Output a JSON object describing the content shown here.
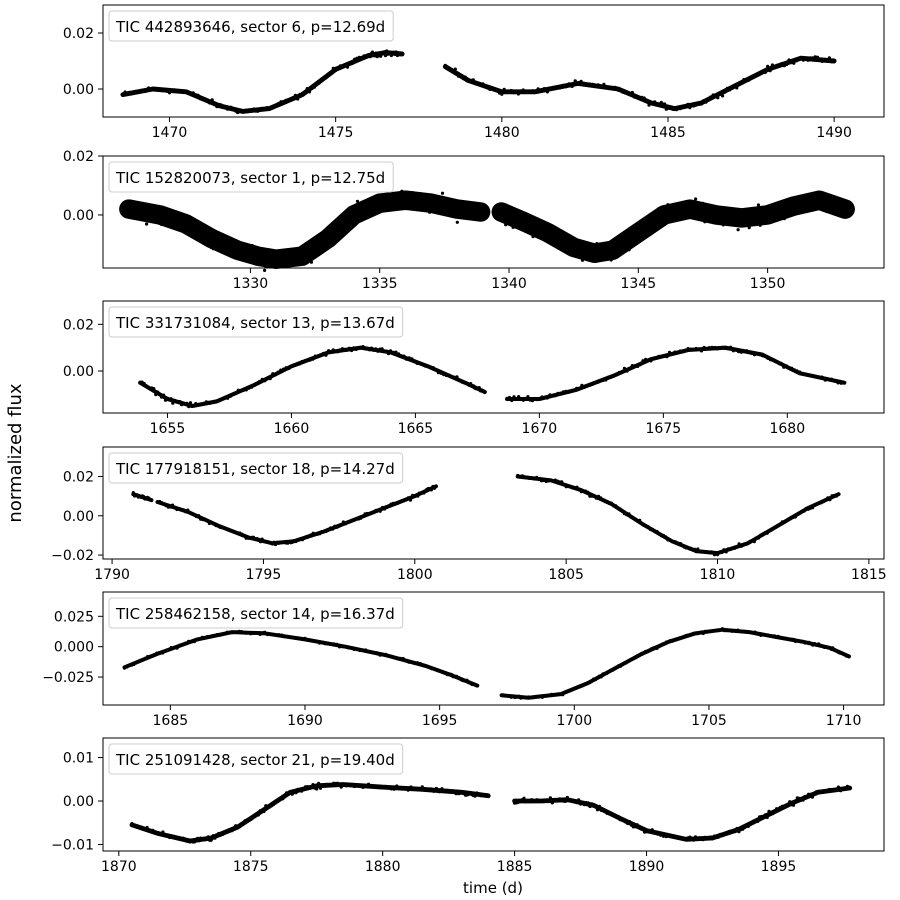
{
  "figure": {
    "ylabel": "normalized flux",
    "xlabel": "time (d)",
    "point_color": "#000000"
  },
  "chart_data": [
    {
      "type": "scatter",
      "label": "TIC 442893646, sector 6, p=12.69d",
      "xlabel": "",
      "ylabel": "normalized flux",
      "xlim": [
        1468.0,
        1491.5
      ],
      "ylim": [
        -0.01,
        0.03
      ],
      "xticks": [
        1470,
        1475,
        1480,
        1485,
        1490
      ],
      "yticks": [
        0.0,
        0.02
      ],
      "ytick_labels": [
        "0.00",
        "0.02"
      ],
      "scatter": 0.0008,
      "segments": [
        {
          "x": [
            1468.6,
            1469.5,
            1470.5,
            1471.5,
            1472.2,
            1473.0,
            1474.0,
            1475.0,
            1476.0,
            1476.5,
            1477.0
          ],
          "y": [
            -0.002,
            0.0,
            -0.001,
            -0.006,
            -0.008,
            -0.007,
            -0.002,
            0.007,
            0.012,
            0.013,
            0.0125
          ]
        },
        {
          "x": [
            1478.3,
            1479.0,
            1480.0,
            1481.0,
            1482.3,
            1483.5,
            1484.5,
            1485.2,
            1486.0,
            1487.0,
            1488.0,
            1489.0,
            1490.0
          ],
          "y": [
            0.008,
            0.003,
            -0.001,
            -0.001,
            0.002,
            0.0,
            -0.005,
            -0.007,
            -0.005,
            0.001,
            0.007,
            0.011,
            0.01
          ]
        }
      ]
    },
    {
      "type": "scatter",
      "label": "TIC 152820073, sector 1, p=12.75d",
      "xlabel": "",
      "ylabel": "normalized flux",
      "xlim": [
        1324.3,
        1354.5
      ],
      "ylim": [
        -0.018,
        0.02
      ],
      "xticks": [
        1330,
        1335,
        1340,
        1345,
        1350
      ],
      "yticks": [
        0.0,
        0.02
      ],
      "ytick_labels": [
        "0.00",
        "0.02"
      ],
      "scatter": 0.003,
      "segments": [
        {
          "x": [
            1325.3,
            1326.5,
            1327.5,
            1328.5,
            1329.5,
            1330.3,
            1331.0,
            1332.0,
            1333.0,
            1334.0,
            1335.0,
            1336.0,
            1337.0,
            1338.0,
            1338.9
          ],
          "y": [
            0.002,
            0.0,
            -0.003,
            -0.008,
            -0.012,
            -0.014,
            -0.015,
            -0.014,
            -0.008,
            0.0,
            0.004,
            0.005,
            0.004,
            0.002,
            0.001
          ]
        },
        {
          "x": [
            1339.7,
            1340.5,
            1341.5,
            1342.5,
            1343.3,
            1344.0,
            1345.0,
            1346.0,
            1347.0,
            1348.0,
            1349.0,
            1350.0,
            1351.0,
            1352.0,
            1353.0
          ],
          "y": [
            0.001,
            -0.002,
            -0.006,
            -0.011,
            -0.013,
            -0.012,
            -0.006,
            0.0,
            0.002,
            0.0,
            -0.001,
            0.0,
            0.003,
            0.005,
            0.002
          ]
        }
      ]
    },
    {
      "type": "scatter",
      "label": "TIC 331731084, sector 13, p=13.67d",
      "xlabel": "",
      "ylabel": "normalized flux",
      "xlim": [
        1652.4,
        1683.9
      ],
      "ylim": [
        -0.018,
        0.03
      ],
      "xticks": [
        1655,
        1660,
        1665,
        1670,
        1675,
        1680
      ],
      "yticks": [
        0.0,
        0.02
      ],
      "ytick_labels": [
        "0.00",
        "0.02"
      ],
      "scatter": 0.0008,
      "segments": [
        {
          "x": [
            1653.9,
            1655.0,
            1656.0,
            1657.0,
            1658.5,
            1660.0,
            1661.5,
            1662.8,
            1664.0,
            1665.5,
            1667.0,
            1667.8
          ],
          "y": [
            -0.005,
            -0.012,
            -0.015,
            -0.013,
            -0.006,
            0.002,
            0.008,
            0.01,
            0.008,
            0.002,
            -0.005,
            -0.009
          ]
        },
        {
          "x": [
            1668.7,
            1670.0,
            1671.5,
            1673.0,
            1674.5,
            1676.0,
            1677.5,
            1679.0,
            1680.5,
            1682.3
          ],
          "y": [
            -0.012,
            -0.012,
            -0.008,
            -0.002,
            0.005,
            0.009,
            0.01,
            0.007,
            -0.001,
            -0.005
          ]
        }
      ]
    },
    {
      "type": "scatter",
      "label": "TIC 177918151, sector 18, p=14.27d",
      "xlabel": "",
      "ylabel": "normalized flux",
      "xlim": [
        1789.7,
        1815.5
      ],
      "ylim": [
        -0.022,
        0.035
      ],
      "xticks": [
        1790,
        1795,
        1800,
        1805,
        1810,
        1815
      ],
      "yticks": [
        -0.02,
        0.0,
        0.02
      ],
      "ytick_labels": [
        "−0.02",
        "0.00",
        "0.02"
      ],
      "scatter": 0.0008,
      "segments": [
        {
          "x": [
            1790.7,
            1791.3
          ],
          "y": [
            0.011,
            0.008
          ]
        },
        {
          "x": [
            1791.5,
            1792.5,
            1793.5,
            1794.5,
            1795.3,
            1796.0,
            1797.0,
            1798.0,
            1799.0,
            1800.0,
            1800.7
          ],
          "y": [
            0.007,
            0.002,
            -0.005,
            -0.011,
            -0.014,
            -0.013,
            -0.008,
            -0.002,
            0.004,
            0.01,
            0.015
          ]
        },
        {
          "x": [
            1803.4,
            1804.5,
            1805.5,
            1806.5,
            1807.5,
            1808.5,
            1809.3,
            1810.0,
            1811.0,
            1812.0,
            1813.0,
            1814.0
          ],
          "y": [
            0.02,
            0.018,
            0.013,
            0.006,
            -0.004,
            -0.013,
            -0.018,
            -0.019,
            -0.014,
            -0.005,
            0.004,
            0.011
          ]
        }
      ]
    },
    {
      "type": "scatter",
      "label": "TIC 258462158, sector 14, p=16.37d",
      "xlabel": "",
      "ylabel": "normalized flux",
      "xlim": [
        1682.5,
        1711.5
      ],
      "ylim": [
        -0.048,
        0.045
      ],
      "xticks": [
        1685,
        1690,
        1695,
        1700,
        1705,
        1710
      ],
      "yticks": [
        -0.025,
        0.0,
        0.025
      ],
      "ytick_labels": [
        "−0.025",
        "0.000",
        "0.025"
      ],
      "scatter": 0.0008,
      "segments": [
        {
          "x": [
            1683.3,
            1684.5,
            1686.0,
            1687.3,
            1688.5,
            1690.0,
            1691.5,
            1693.0,
            1694.5,
            1695.5,
            1696.4
          ],
          "y": [
            -0.017,
            -0.006,
            0.006,
            0.012,
            0.011,
            0.006,
            0.0,
            -0.007,
            -0.016,
            -0.024,
            -0.032
          ]
        },
        {
          "x": [
            1697.3,
            1698.3,
            1699.5,
            1700.5,
            1701.5,
            1702.5,
            1703.5,
            1704.5,
            1705.5,
            1706.5,
            1707.5,
            1708.5,
            1709.5,
            1710.2
          ],
          "y": [
            -0.04,
            -0.042,
            -0.039,
            -0.03,
            -0.018,
            -0.006,
            0.004,
            0.011,
            0.014,
            0.012,
            0.008,
            0.004,
            -0.001,
            -0.008
          ]
        }
      ]
    },
    {
      "type": "scatter",
      "label": "TIC 251091428, sector 21, p=19.40d",
      "xlabel": "time (d)",
      "ylabel": "normalized flux",
      "xlim": [
        1869.4,
        1899.0
      ],
      "ylim": [
        -0.0115,
        0.0145
      ],
      "xticks": [
        1870,
        1875,
        1880,
        1885,
        1890,
        1895
      ],
      "yticks": [
        -0.01,
        0.0,
        0.01
      ],
      "ytick_labels": [
        "−0.01",
        "0.00",
        "0.01"
      ],
      "scatter": 0.0005,
      "segments": [
        {
          "x": [
            1870.5,
            1871.5,
            1872.7,
            1873.5,
            1874.5,
            1875.5,
            1876.5,
            1877.5,
            1878.5,
            1880.0,
            1881.5,
            1883.0,
            1884.0
          ],
          "y": [
            -0.0055,
            -0.0075,
            -0.0092,
            -0.0085,
            -0.006,
            -0.002,
            0.002,
            0.0035,
            0.0038,
            0.0032,
            0.0027,
            0.002,
            0.0012
          ]
        },
        {
          "x": [
            1885.0,
            1886.0,
            1887.0,
            1888.0,
            1889.0,
            1890.0,
            1891.5,
            1892.5,
            1893.5,
            1894.5,
            1895.5,
            1896.5,
            1897.7
          ],
          "y": [
            0.0,
            0.0,
            0.0003,
            -0.001,
            -0.004,
            -0.0068,
            -0.0088,
            -0.0085,
            -0.0065,
            -0.0035,
            -0.0005,
            0.002,
            0.003
          ]
        }
      ]
    }
  ]
}
